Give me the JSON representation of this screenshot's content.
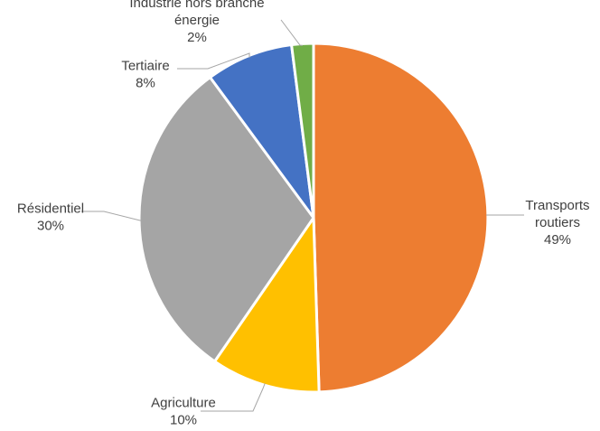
{
  "chart_data": {
    "type": "pie",
    "slices": [
      {
        "name": "Transports routiers",
        "name_lines": [
          "Transports",
          "routiers"
        ],
        "value": 49,
        "label": "49%",
        "color": "#ED7D31"
      },
      {
        "name": "Agriculture",
        "name_lines": [
          "Agriculture"
        ],
        "value": 10,
        "label": "10%",
        "color": "#FFC000"
      },
      {
        "name": "Résidentiel",
        "name_lines": [
          "Résidentiel"
        ],
        "value": 30,
        "label": "30%",
        "color": "#A5A5A5"
      },
      {
        "name": "Tertiaire",
        "name_lines": [
          "Tertiaire"
        ],
        "value": 8,
        "label": "8%",
        "color": "#4472C4"
      },
      {
        "name": "Industrie hors branche énergie",
        "name_lines": [
          "Industrie hors branche",
          "énergie"
        ],
        "value": 2,
        "label": "2%",
        "color": "#70AD47"
      }
    ],
    "start_angle": "12 o'clock",
    "direction": "clockwise",
    "data_labels": "category name and percentage, outside end with leader lines",
    "legend": "none"
  }
}
